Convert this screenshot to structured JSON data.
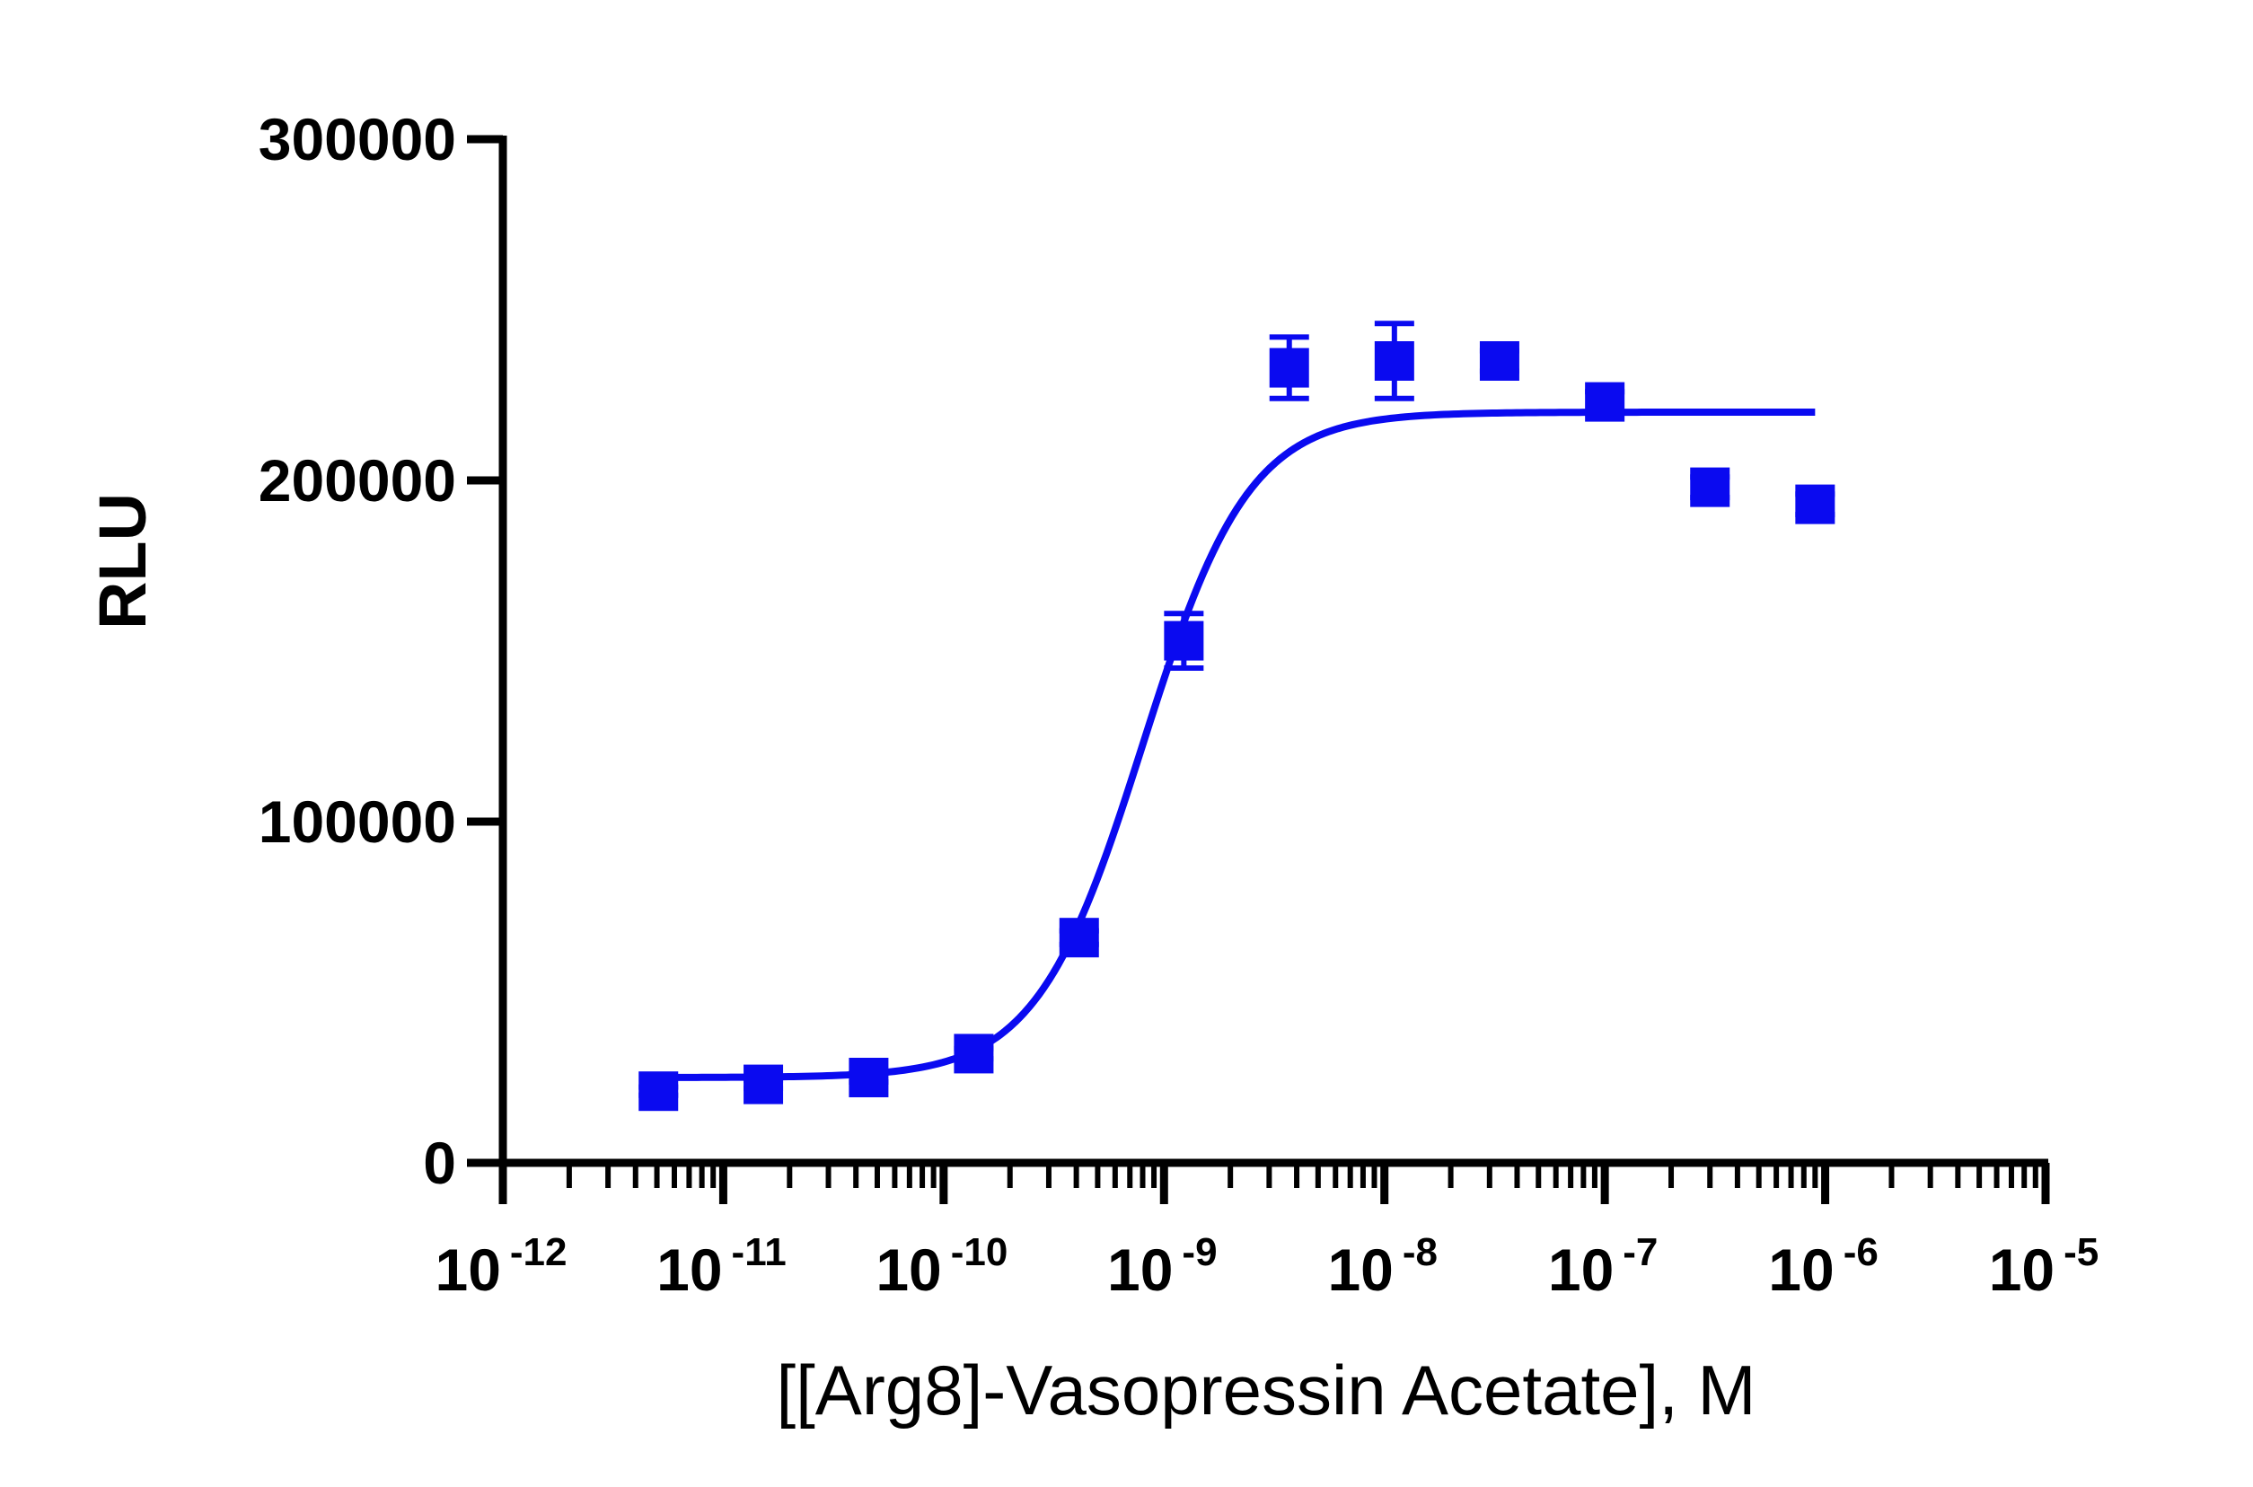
{
  "chart_data": {
    "type": "scatter",
    "xlabel": "[[Arg8]-Vasopressin Acetate], M",
    "ylabel": "RLU",
    "x_scale": "log10",
    "xlim": [
      1e-12,
      1e-05
    ],
    "ylim": [
      0,
      300000
    ],
    "y_ticks": [
      0,
      100000,
      200000,
      300000
    ],
    "y_tick_labels": [
      "0",
      "100000",
      "200000",
      "300000"
    ],
    "x_tick_labels": [
      {
        "base": "10",
        "exp": "-12"
      },
      {
        "base": "10",
        "exp": "-11"
      },
      {
        "base": "10",
        "exp": "-10"
      },
      {
        "base": "10",
        "exp": "-9"
      },
      {
        "base": "10",
        "exp": "-8"
      },
      {
        "base": "10",
        "exp": "-7"
      },
      {
        "base": "10",
        "exp": "-6"
      },
      {
        "base": "10",
        "exp": "-5"
      }
    ],
    "x_ticks": [
      1e-12,
      1e-11,
      1e-10,
      1e-09,
      1e-08,
      1e-07,
      1e-06,
      1e-05
    ],
    "grid": false,
    "marker_color": "#0a0af0",
    "series": [
      {
        "marker": "square",
        "points": [
          {
            "x": 5.08e-12,
            "y": 21000,
            "err": 1200
          },
          {
            "x": 1.52e-11,
            "y": 23000,
            "err": 1200
          },
          {
            "x": 4.57e-11,
            "y": 25000,
            "err": 1300
          },
          {
            "x": 1.37e-10,
            "y": 32000,
            "err": 1500
          },
          {
            "x": 4.12e-10,
            "y": 66000,
            "err": 2000
          },
          {
            "x": 1.23e-09,
            "y": 153000,
            "err": 8000
          },
          {
            "x": 3.7e-09,
            "y": 233000,
            "err": 9000
          },
          {
            "x": 1.11e-08,
            "y": 235000,
            "err": 11000
          },
          {
            "x": 3.33e-08,
            "y": 235000,
            "err": 3000
          },
          {
            "x": 1e-07,
            "y": 223000,
            "err": 3000
          },
          {
            "x": 3e-07,
            "y": 198000,
            "err": 3000
          },
          {
            "x": 9e-07,
            "y": 193000,
            "err": 3000
          }
        ]
      }
    ],
    "fit": {
      "type": "four_parameter_logistic",
      "bottom": 25000,
      "top": 220000,
      "ec50": 8e-10,
      "hill": 1.8,
      "x_range": [
        5.08e-12,
        9e-07
      ]
    }
  }
}
